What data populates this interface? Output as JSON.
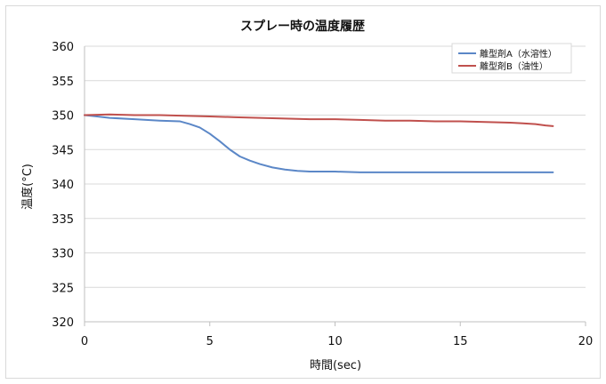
{
  "chart_data": {
    "type": "line",
    "title": "スプレー時の温度履歴",
    "xlabel": "時間(sec)",
    "ylabel": "温度(°C)",
    "xlim": [
      0,
      20
    ],
    "ylim": [
      320,
      360
    ],
    "x_ticks": [
      0,
      5,
      10,
      15,
      20
    ],
    "y_ticks": [
      320,
      325,
      330,
      335,
      340,
      345,
      350,
      355,
      360
    ],
    "grid": true,
    "legend_position": "top-right",
    "series": [
      {
        "name": "離型剤A（水溶性）",
        "color": "#5b87c7",
        "x": [
          0,
          0.5,
          1,
          2,
          3,
          3.8,
          4.2,
          4.6,
          5,
          5.4,
          5.8,
          6.2,
          6.6,
          7,
          7.5,
          8,
          8.5,
          9,
          10,
          11,
          12,
          13,
          14,
          15,
          16,
          17,
          18,
          18.7
        ],
        "y": [
          350,
          349.8,
          349.6,
          349.4,
          349.2,
          349.1,
          348.7,
          348.2,
          347.3,
          346.2,
          345.0,
          344.0,
          343.4,
          342.9,
          342.4,
          342.1,
          341.9,
          341.8,
          341.8,
          341.7,
          341.7,
          341.7,
          341.7,
          341.7,
          341.7,
          341.7,
          341.7,
          341.7
        ]
      },
      {
        "name": "離型剤B（油性）",
        "color": "#c0504d",
        "x": [
          0,
          1,
          2,
          3,
          4,
          5,
          6,
          7,
          8,
          9,
          10,
          11,
          12,
          13,
          14,
          15,
          16,
          17,
          17.5,
          18,
          18.4,
          18.7
        ],
        "y": [
          350,
          350.1,
          350.0,
          350.0,
          349.9,
          349.8,
          349.7,
          349.6,
          349.5,
          349.4,
          349.4,
          349.3,
          349.2,
          349.2,
          349.1,
          349.1,
          349.0,
          348.9,
          348.8,
          348.7,
          348.5,
          348.4
        ]
      }
    ]
  }
}
